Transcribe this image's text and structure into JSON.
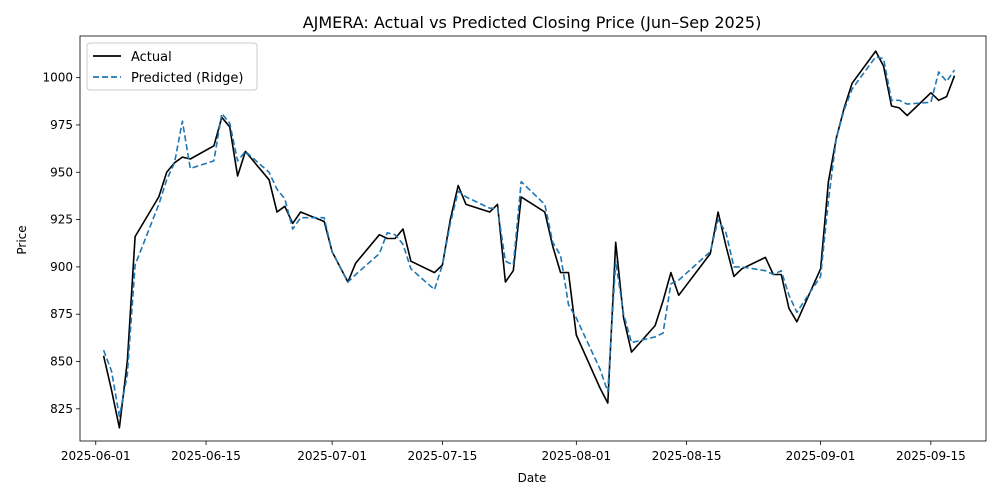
{
  "chart_data": {
    "type": "line",
    "title": "AJMERA: Actual vs Predicted Closing Price (Jun–Sep 2025)",
    "xlabel": "Date",
    "ylabel": "Price",
    "xlim": [
      "2025-05-30",
      "2025-09-22"
    ],
    "ylim": [
      808,
      1022
    ],
    "x_ticks": [
      "2025-06-01",
      "2025-06-15",
      "2025-07-01",
      "2025-07-15",
      "2025-08-01",
      "2025-08-15",
      "2025-09-01",
      "2025-09-15"
    ],
    "y_ticks": [
      825,
      850,
      875,
      900,
      925,
      950,
      975,
      1000
    ],
    "legend_position": "top-left",
    "grid": false,
    "series": [
      {
        "name": "Actual",
        "color": "#000000",
        "style": "solid",
        "points": [
          [
            "2025-06-02",
            853
          ],
          [
            "2025-06-03",
            835
          ],
          [
            "2025-06-04",
            815
          ],
          [
            "2025-06-05",
            850
          ],
          [
            "2025-06-06",
            916
          ],
          [
            "2025-06-09",
            937
          ],
          [
            "2025-06-10",
            950
          ],
          [
            "2025-06-11",
            955
          ],
          [
            "2025-06-12",
            958
          ],
          [
            "2025-06-13",
            957
          ],
          [
            "2025-06-16",
            964
          ],
          [
            "2025-06-17",
            979
          ],
          [
            "2025-06-18",
            974
          ],
          [
            "2025-06-19",
            948
          ],
          [
            "2025-06-20",
            961
          ],
          [
            "2025-06-23",
            946
          ],
          [
            "2025-06-24",
            929
          ],
          [
            "2025-06-25",
            932
          ],
          [
            "2025-06-26",
            923
          ],
          [
            "2025-06-27",
            929
          ],
          [
            "2025-06-30",
            924
          ],
          [
            "2025-07-01",
            908
          ],
          [
            "2025-07-03",
            892
          ],
          [
            "2025-07-04",
            902
          ],
          [
            "2025-07-07",
            917
          ],
          [
            "2025-07-08",
            915
          ],
          [
            "2025-07-09",
            915
          ],
          [
            "2025-07-10",
            920
          ],
          [
            "2025-07-11",
            903
          ],
          [
            "2025-07-14",
            897
          ],
          [
            "2025-07-15",
            901
          ],
          [
            "2025-07-16",
            925
          ],
          [
            "2025-07-17",
            943
          ],
          [
            "2025-07-18",
            933
          ],
          [
            "2025-07-21",
            929
          ],
          [
            "2025-07-22",
            933
          ],
          [
            "2025-07-23",
            892
          ],
          [
            "2025-07-24",
            898
          ],
          [
            "2025-07-25",
            937
          ],
          [
            "2025-07-28",
            929
          ],
          [
            "2025-07-29",
            911
          ],
          [
            "2025-07-30",
            897
          ],
          [
            "2025-07-31",
            897
          ],
          [
            "2025-08-01",
            864
          ],
          [
            "2025-08-04",
            836
          ],
          [
            "2025-08-05",
            828
          ],
          [
            "2025-08-06",
            913
          ],
          [
            "2025-08-07",
            873
          ],
          [
            "2025-08-08",
            855
          ],
          [
            "2025-08-11",
            869
          ],
          [
            "2025-08-12",
            882
          ],
          [
            "2025-08-13",
            897
          ],
          [
            "2025-08-14",
            885
          ],
          [
            "2025-08-18",
            907
          ],
          [
            "2025-08-19",
            929
          ],
          [
            "2025-08-20",
            911
          ],
          [
            "2025-08-21",
            895
          ],
          [
            "2025-08-22",
            899
          ],
          [
            "2025-08-25",
            905
          ],
          [
            "2025-08-26",
            896
          ],
          [
            "2025-08-27",
            896
          ],
          [
            "2025-08-28",
            878
          ],
          [
            "2025-08-29",
            871
          ],
          [
            "2025-09-01",
            899
          ],
          [
            "2025-09-02",
            945
          ],
          [
            "2025-09-03",
            968
          ],
          [
            "2025-09-04",
            984
          ],
          [
            "2025-09-05",
            997
          ],
          [
            "2025-09-08",
            1014
          ],
          [
            "2025-09-09",
            1006
          ],
          [
            "2025-09-10",
            985
          ],
          [
            "2025-09-11",
            984
          ],
          [
            "2025-09-12",
            980
          ],
          [
            "2025-09-15",
            992
          ],
          [
            "2025-09-16",
            988
          ],
          [
            "2025-09-17",
            990
          ],
          [
            "2025-09-18",
            1001
          ]
        ]
      },
      {
        "name": "Predicted (Ridge)",
        "color": "#1f77b4",
        "style": "dashed",
        "points": [
          [
            "2025-06-02",
            856
          ],
          [
            "2025-06-03",
            845
          ],
          [
            "2025-06-04",
            821
          ],
          [
            "2025-06-05",
            843
          ],
          [
            "2025-06-06",
            901
          ],
          [
            "2025-06-09",
            933
          ],
          [
            "2025-06-10",
            946
          ],
          [
            "2025-06-11",
            955
          ],
          [
            "2025-06-12",
            977
          ],
          [
            "2025-06-13",
            952
          ],
          [
            "2025-06-16",
            956
          ],
          [
            "2025-06-17",
            981
          ],
          [
            "2025-06-18",
            976
          ],
          [
            "2025-06-19",
            956
          ],
          [
            "2025-06-20",
            961
          ],
          [
            "2025-06-23",
            950
          ],
          [
            "2025-06-24",
            941
          ],
          [
            "2025-06-25",
            936
          ],
          [
            "2025-06-26",
            920
          ],
          [
            "2025-06-27",
            926
          ],
          [
            "2025-06-30",
            926
          ],
          [
            "2025-07-01",
            908
          ],
          [
            "2025-07-03",
            892
          ],
          [
            "2025-07-04",
            896
          ],
          [
            "2025-07-07",
            907
          ],
          [
            "2025-07-08",
            918
          ],
          [
            "2025-07-09",
            917
          ],
          [
            "2025-07-10",
            912
          ],
          [
            "2025-07-11",
            899
          ],
          [
            "2025-07-14",
            888
          ],
          [
            "2025-07-15",
            901
          ],
          [
            "2025-07-16",
            923
          ],
          [
            "2025-07-17",
            940
          ],
          [
            "2025-07-18",
            937
          ],
          [
            "2025-07-21",
            931
          ],
          [
            "2025-07-22",
            931
          ],
          [
            "2025-07-23",
            903
          ],
          [
            "2025-07-24",
            901
          ],
          [
            "2025-07-25",
            945
          ],
          [
            "2025-07-28",
            933
          ],
          [
            "2025-07-29",
            913
          ],
          [
            "2025-07-30",
            906
          ],
          [
            "2025-07-31",
            880
          ],
          [
            "2025-08-01",
            873
          ],
          [
            "2025-08-04",
            846
          ],
          [
            "2025-08-05",
            834
          ],
          [
            "2025-08-06",
            903
          ],
          [
            "2025-08-07",
            875
          ],
          [
            "2025-08-08",
            860
          ],
          [
            "2025-08-11",
            863
          ],
          [
            "2025-08-12",
            865
          ],
          [
            "2025-08-13",
            891
          ],
          [
            "2025-08-14",
            893
          ],
          [
            "2025-08-18",
            908
          ],
          [
            "2025-08-19",
            925
          ],
          [
            "2025-08-20",
            918
          ],
          [
            "2025-08-21",
            900
          ],
          [
            "2025-08-22",
            900
          ],
          [
            "2025-08-25",
            898
          ],
          [
            "2025-08-26",
            896
          ],
          [
            "2025-08-27",
            898
          ],
          [
            "2025-08-28",
            885
          ],
          [
            "2025-08-29",
            876
          ],
          [
            "2025-09-01",
            895
          ],
          [
            "2025-09-02",
            935
          ],
          [
            "2025-09-03",
            968
          ],
          [
            "2025-09-04",
            983
          ],
          [
            "2025-09-05",
            994
          ],
          [
            "2025-09-08",
            1011
          ],
          [
            "2025-09-09",
            1010
          ],
          [
            "2025-09-10",
            988
          ],
          [
            "2025-09-11",
            988
          ],
          [
            "2025-09-12",
            986
          ],
          [
            "2025-09-15",
            987
          ],
          [
            "2025-09-16",
            1003
          ],
          [
            "2025-09-17",
            998
          ],
          [
            "2025-09-18",
            1004
          ]
        ]
      }
    ]
  }
}
